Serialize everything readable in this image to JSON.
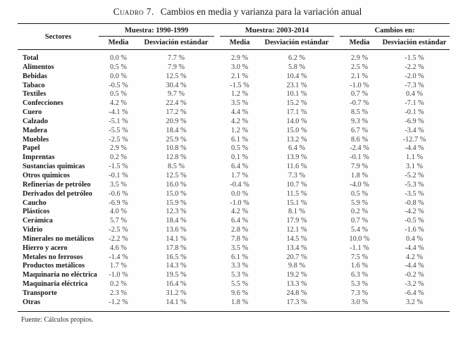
{
  "header": {
    "label": "Cuadro 7.",
    "title": "Cambios en media y varianza para la variación anual"
  },
  "table": {
    "sector_header": "Sectores",
    "groups": [
      "Muestra: 1990-1999",
      "Muestra: 2003-2014",
      "Cambios en:"
    ],
    "subheaders": {
      "media": "Media",
      "desv": "Desviación estándar"
    },
    "rows": [
      {
        "sector": "Total",
        "values": [
          "0.0 %",
          "7.7 %",
          "2.9 %",
          "6.2 %",
          "2.9 %",
          "-1.5 %"
        ]
      },
      {
        "sector": "Alimentos",
        "values": [
          "0.5 %",
          "7.9 %",
          "3.0 %",
          "5.8 %",
          "2.5 %",
          "-2.2 %"
        ]
      },
      {
        "sector": "Bebidas",
        "values": [
          "0.0 %",
          "12.5 %",
          "2.1 %",
          "10.4 %",
          "2.1 %",
          "-2.0 %"
        ]
      },
      {
        "sector": "Tabaco",
        "values": [
          "-0.5 %",
          "30.4 %",
          "-1.5 %",
          "23.1 %",
          "-1.0 %",
          "-7.3 %"
        ]
      },
      {
        "sector": "Textiles",
        "values": [
          "0.5 %",
          "9.7 %",
          "1.2 %",
          "10.1 %",
          "0.7 %",
          "0.4 %"
        ]
      },
      {
        "sector": "Confecciones",
        "values": [
          "4.2 %",
          "22.4 %",
          "3.5 %",
          "15.2 %",
          "-0.7 %",
          "-7.1 %"
        ]
      },
      {
        "sector": "Cuero",
        "values": [
          "-4.1 %",
          "17.2 %",
          "4.4 %",
          "17.1 %",
          "8.5 %",
          "-0.1 %"
        ]
      },
      {
        "sector": "Calzado",
        "values": [
          "-5.1 %",
          "20.9 %",
          "4.2 %",
          "14.0 %",
          "9.3 %",
          "-6.9 %"
        ]
      },
      {
        "sector": "Madera",
        "values": [
          "-5.5 %",
          "18.4 %",
          "1.2 %",
          "15.0 %",
          "6.7 %",
          "-3.4 %"
        ]
      },
      {
        "sector": "Muebles",
        "values": [
          "-2.5 %",
          "25.9 %",
          "6.1 %",
          "13.2 %",
          "8.6 %",
          "-12.7 %"
        ]
      },
      {
        "sector": "Papel",
        "values": [
          "2.9 %",
          "10.8 %",
          "0.5 %",
          "6.4 %",
          "-2.4 %",
          "-4.4 %"
        ]
      },
      {
        "sector": "Imprentas",
        "values": [
          "0.2 %",
          "12.8 %",
          "0.1 %",
          "13.9 %",
          "-0.1 %",
          "1.1 %"
        ]
      },
      {
        "sector": "Sustancias químicas",
        "values": [
          "-1.5 %",
          "8.5 %",
          "6.4 %",
          "11.6 %",
          "7.9 %",
          "3.1 %"
        ]
      },
      {
        "sector": "Otros químicos",
        "values": [
          "-0.1 %",
          "12.5 %",
          "1.7 %",
          "7.3 %",
          "1.8 %",
          "-5.2 %"
        ]
      },
      {
        "sector": "Refinerías de petróleo",
        "values": [
          "3.5 %",
          "16.0 %",
          "-0.4 %",
          "10.7 %",
          "-4.0 %",
          "-5.3 %"
        ]
      },
      {
        "sector": "Derivados del petróleo",
        "values": [
          "-0.6 %",
          "15.0 %",
          "0.0 %",
          "11.5 %",
          "0.5 %",
          "-3.5 %"
        ]
      },
      {
        "sector": "Caucho",
        "values": [
          "-6.9 %",
          "15.9 %",
          "-1.0 %",
          "15.1 %",
          "5.9 %",
          "-0.8 %"
        ]
      },
      {
        "sector": "Plásticos",
        "values": [
          "4.0 %",
          "12.3 %",
          "4.2 %",
          "8.1 %",
          "0.2 %",
          "-4.2 %"
        ]
      },
      {
        "sector": "Cerámica",
        "values": [
          "5.7 %",
          "18.4 %",
          "6.4 %",
          "17.9 %",
          "0.7 %",
          "-0.5 %"
        ]
      },
      {
        "sector": "Vidrio",
        "values": [
          "-2.5 %",
          "13.6 %",
          "2.8 %",
          "12.1 %",
          "5.4 %",
          "-1.6 %"
        ]
      },
      {
        "sector": "Minerales no metálicos",
        "values": [
          "-2.2 %",
          "14.1 %",
          "7.8 %",
          "14.5 %",
          "10.0 %",
          "0.4 %"
        ]
      },
      {
        "sector": "Hierro y acero",
        "values": [
          "4.6 %",
          "17.8 %",
          "3.5 %",
          "13.4 %",
          "-1.1 %",
          "-4.4 %"
        ]
      },
      {
        "sector": "Metales no ferrosos",
        "values": [
          "-1.4 %",
          "16.5 %",
          "6.1 %",
          "20.7 %",
          "7.5 %",
          "4.2 %"
        ]
      },
      {
        "sector": "Productos metálicos",
        "values": [
          "1.7 %",
          "14.3 %",
          "3.3 %",
          "9.8 %",
          "1.6 %",
          "-4.4 %"
        ]
      },
      {
        "sector": "Maquinaria no eléctrica",
        "values": [
          "-1.0 %",
          "19.5 %",
          "5.3 %",
          "19.2 %",
          "6.3 %",
          "-0.2 %"
        ]
      },
      {
        "sector": "Maquinaria eléctrica",
        "values": [
          "0.2 %",
          "16.4 %",
          "5.5 %",
          "13.3 %",
          "5.3 %",
          "-3.2 %"
        ]
      },
      {
        "sector": "Transporte",
        "values": [
          "2.3 %",
          "31.2 %",
          "9.6 %",
          "24.8 %",
          "7.3 %",
          "-6.4 %"
        ]
      },
      {
        "sector": "Otras",
        "values": [
          "-1.2 %",
          "14.1 %",
          "1.8 %",
          "17.3 %",
          "3.0 %",
          "3.2 %"
        ]
      }
    ]
  },
  "footer": {
    "source": "Fuente: Cálculos propios."
  }
}
